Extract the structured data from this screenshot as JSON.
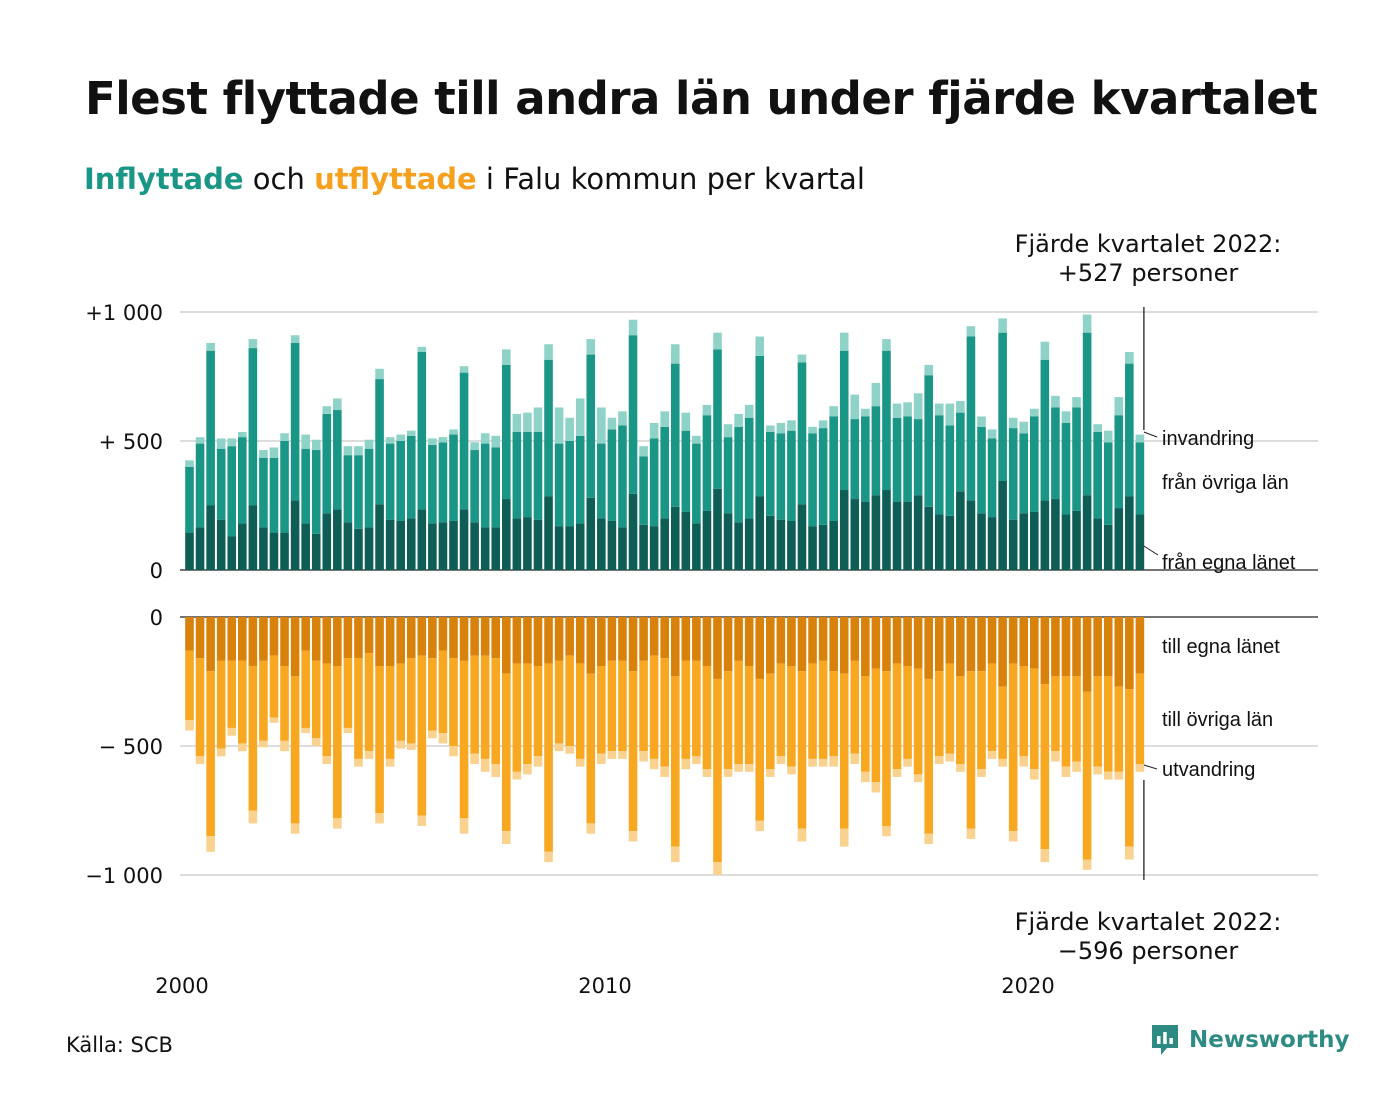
{
  "header": {
    "title": "Flest flyttade till andra län under fjärde kvartalet",
    "subtitle_in": "Inflyttade",
    "subtitle_mid": " och ",
    "subtitle_out": "utflyttade",
    "subtitle_end": " i Falu kommun per kvartal"
  },
  "footer": {
    "source": "Källa: SCB",
    "logo_text": "Newsworthy"
  },
  "chart_data": {
    "type": "bar",
    "stacked": true,
    "title": "Flest flyttade till andra län under fjärde kvartalet",
    "x_ticks": [
      {
        "year": 2000,
        "label": "2000"
      },
      {
        "year": 2010,
        "label": "2010"
      },
      {
        "year": 2020,
        "label": "2020"
      }
    ],
    "top_panel": {
      "ylim": [
        0,
        1000
      ],
      "y_ticks": [
        {
          "value": 0,
          "label": "0"
        },
        {
          "value": 500,
          "label": "+  500"
        },
        {
          "value": 1000,
          "label": "+1 000"
        }
      ],
      "series": [
        {
          "name": "från egna länet",
          "color": "#0e5e56",
          "values": [
            145,
            165,
            250,
            195,
            130,
            180,
            250,
            165,
            145,
            145,
            270,
            180,
            140,
            220,
            235,
            185,
            160,
            165,
            255,
            195,
            190,
            200,
            235,
            180,
            185,
            190,
            235,
            185,
            165,
            165,
            275,
            200,
            205,
            195,
            285,
            170,
            170,
            180,
            280,
            200,
            190,
            165,
            295,
            175,
            170,
            200,
            245,
            225,
            180,
            230,
            315,
            220,
            185,
            200,
            285,
            210,
            195,
            190,
            255,
            170,
            175,
            190,
            310,
            275,
            265,
            290,
            310,
            265,
            265,
            290,
            245,
            215,
            210,
            305,
            270,
            220,
            205,
            345,
            195,
            220,
            225,
            270,
            275,
            215,
            230,
            290,
            200,
            175,
            240,
            285,
            215
          ]
        },
        {
          "name": "från övriga län",
          "color": "#1a9687",
          "values": [
            255,
            325,
            600,
            275,
            350,
            335,
            610,
            270,
            290,
            355,
            610,
            290,
            325,
            385,
            385,
            260,
            285,
            305,
            485,
            295,
            310,
            320,
            610,
            305,
            310,
            335,
            530,
            280,
            325,
            310,
            520,
            335,
            330,
            340,
            530,
            320,
            330,
            340,
            555,
            290,
            355,
            395,
            615,
            265,
            340,
            355,
            555,
            315,
            310,
            370,
            540,
            295,
            370,
            390,
            545,
            325,
            335,
            350,
            550,
            360,
            375,
            405,
            540,
            310,
            330,
            345,
            540,
            325,
            330,
            295,
            510,
            385,
            350,
            305,
            635,
            335,
            305,
            575,
            355,
            310,
            370,
            545,
            355,
            355,
            400,
            630,
            335,
            320,
            360,
            515,
            280
          ]
        },
        {
          "name": "invandring",
          "color": "#8fd3c8",
          "values": [
            25,
            25,
            30,
            40,
            30,
            20,
            35,
            30,
            40,
            30,
            30,
            55,
            40,
            30,
            45,
            35,
            35,
            35,
            40,
            25,
            25,
            20,
            20,
            25,
            20,
            20,
            25,
            30,
            40,
            45,
            60,
            70,
            75,
            95,
            60,
            140,
            90,
            145,
            60,
            140,
            45,
            55,
            60,
            40,
            60,
            60,
            75,
            70,
            30,
            40,
            65,
            50,
            50,
            50,
            75,
            25,
            40,
            40,
            30,
            25,
            30,
            40,
            70,
            95,
            30,
            90,
            45,
            55,
            55,
            100,
            40,
            45,
            85,
            45,
            40,
            40,
            35,
            55,
            40,
            45,
            30,
            70,
            45,
            45,
            40,
            70,
            30,
            45,
            70,
            45,
            30
          ]
        }
      ]
    },
    "bottom_panel": {
      "ylim": [
        -1000,
        0
      ],
      "y_ticks": [
        {
          "value": 0,
          "label": "0"
        },
        {
          "value": -500,
          "label": "−  500"
        },
        {
          "value": -1000,
          "label": "−1 000"
        }
      ],
      "series": [
        {
          "name": "till egna länet",
          "color": "#d9820b",
          "values": [
            -130,
            -160,
            -210,
            -170,
            -170,
            -170,
            -190,
            -170,
            -150,
            -190,
            -230,
            -130,
            -170,
            -180,
            -190,
            -160,
            -160,
            -140,
            -190,
            -190,
            -180,
            -160,
            -150,
            -160,
            -130,
            -160,
            -170,
            -150,
            -150,
            -160,
            -220,
            -180,
            -180,
            -190,
            -180,
            -170,
            -150,
            -180,
            -220,
            -190,
            -170,
            -170,
            -210,
            -170,
            -150,
            -160,
            -230,
            -170,
            -170,
            -190,
            -240,
            -210,
            -170,
            -190,
            -240,
            -220,
            -180,
            -190,
            -210,
            -180,
            -170,
            -210,
            -220,
            -170,
            -230,
            -200,
            -210,
            -180,
            -190,
            -200,
            -240,
            -210,
            -180,
            -230,
            -210,
            -210,
            -180,
            -270,
            -180,
            -190,
            -200,
            -260,
            -230,
            -230,
            -230,
            -290,
            -230,
            -230,
            -270,
            -280,
            -220
          ]
        },
        {
          "name": "till övriga län",
          "color": "#f7a720",
          "values": [
            -270,
            -380,
            -640,
            -340,
            -260,
            -320,
            -560,
            -310,
            -240,
            -290,
            -570,
            -300,
            -300,
            -360,
            -590,
            -270,
            -390,
            -380,
            -570,
            -360,
            -300,
            -330,
            -620,
            -280,
            -320,
            -340,
            -610,
            -380,
            -400,
            -410,
            -610,
            -420,
            -390,
            -350,
            -730,
            -320,
            -350,
            -370,
            -580,
            -340,
            -350,
            -350,
            -620,
            -350,
            -400,
            -420,
            -660,
            -380,
            -370,
            -400,
            -710,
            -380,
            -400,
            -380,
            -550,
            -370,
            -360,
            -390,
            -610,
            -370,
            -380,
            -330,
            -600,
            -360,
            -370,
            -440,
            -600,
            -410,
            -360,
            -410,
            -600,
            -330,
            -350,
            -340,
            -610,
            -380,
            -340,
            -280,
            -650,
            -350,
            -390,
            -640,
            -290,
            -350,
            -330,
            -650,
            -350,
            -370,
            -330,
            -610,
            -350
          ]
        },
        {
          "name": "utvandring",
          "color": "#f9d28f",
          "values": [
            -40,
            -30,
            -60,
            -30,
            -30,
            -30,
            -50,
            -25,
            -20,
            -40,
            -40,
            -20,
            -30,
            -30,
            -40,
            -20,
            -30,
            -30,
            -40,
            -30,
            -30,
            -25,
            -40,
            -30,
            -40,
            -40,
            -60,
            -40,
            -50,
            -50,
            -50,
            -30,
            -40,
            -40,
            -40,
            -30,
            -30,
            -30,
            -40,
            -40,
            -30,
            -30,
            -40,
            -40,
            -40,
            -40,
            -60,
            -40,
            -30,
            -30,
            -50,
            -30,
            -30,
            -30,
            -40,
            -30,
            -30,
            -30,
            -50,
            -30,
            -30,
            -40,
            -70,
            -40,
            -40,
            -40,
            -40,
            -30,
            -30,
            -30,
            -40,
            -30,
            -30,
            -30,
            -40,
            -30,
            -30,
            -30,
            -40,
            -40,
            -40,
            -50,
            -40,
            -40,
            -40,
            -40,
            -30,
            -30,
            -30,
            -50,
            -30
          ]
        }
      ]
    },
    "annotations": {
      "top_line1": "Fjärde kvartalet 2022:",
      "top_line2": "+527 personer",
      "bottom_line1": "Fjärde kvartalet 2022:",
      "bottom_line2": "−596 personer"
    },
    "segment_labels": {
      "top": [
        "invandring",
        "från övriga län",
        "från egna länet"
      ],
      "bottom": [
        "till egna länet",
        "till övriga län",
        "utvandring"
      ]
    },
    "grid": true
  }
}
